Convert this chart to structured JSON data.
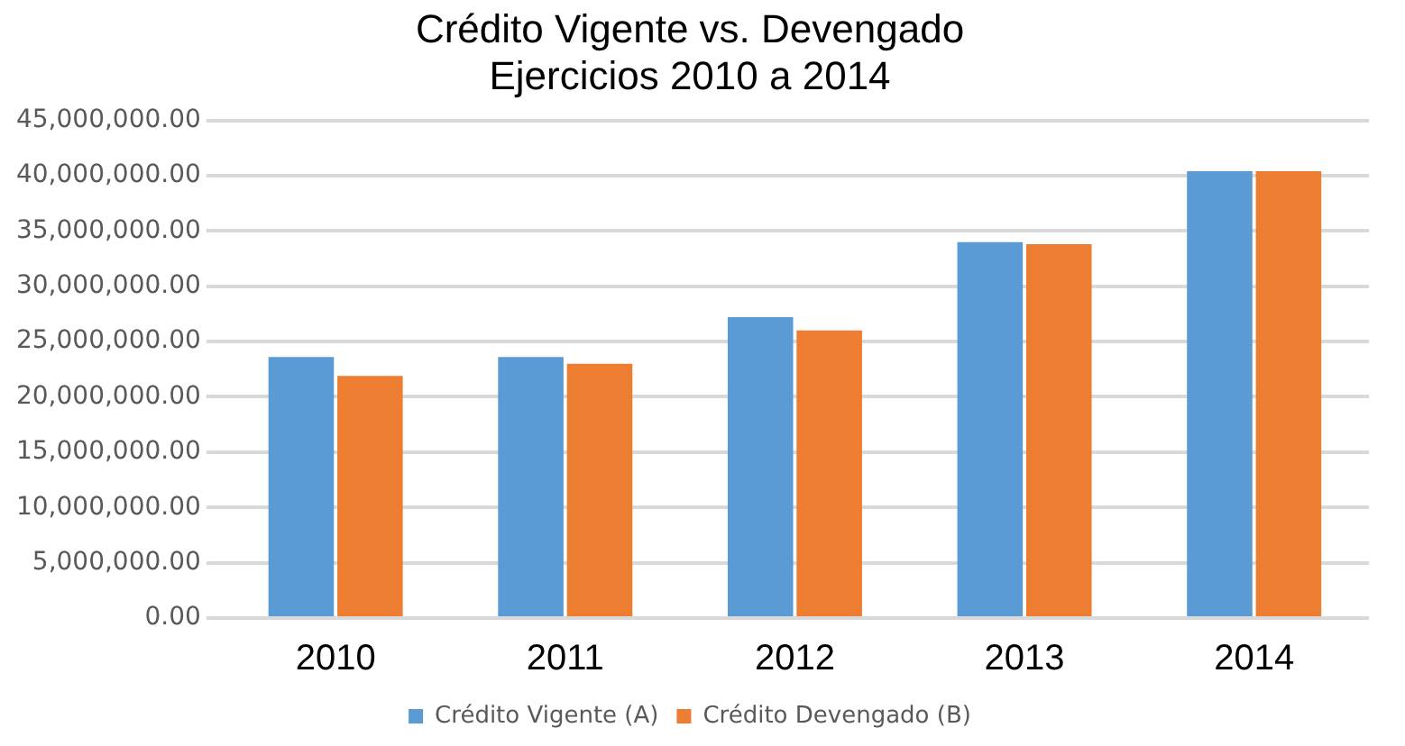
{
  "chart_data": {
    "type": "bar",
    "title": "Crédito Vigente vs. Devengado\nEjercicios 2010 a 2014",
    "categories": [
      "2010",
      "2011",
      "2012",
      "2013",
      "2014"
    ],
    "series": [
      {
        "name": "Crédito Vigente (A)",
        "color": "#5b9bd5",
        "values": [
          23600000,
          23600000,
          27200000,
          34000000,
          40400000
        ]
      },
      {
        "name": "Crédito Devengado (B)",
        "color": "#ed7d31",
        "values": [
          21900000,
          23000000,
          26000000,
          33800000,
          40400000
        ]
      }
    ],
    "ylim": [
      0,
      45000000
    ],
    "yticks": [
      {
        "value": 0,
        "label": "0.00"
      },
      {
        "value": 5000000,
        "label": "5,000,000.00"
      },
      {
        "value": 10000000,
        "label": "10,000,000.00"
      },
      {
        "value": 15000000,
        "label": "15,000,000.00"
      },
      {
        "value": 20000000,
        "label": "20,000,000.00"
      },
      {
        "value": 25000000,
        "label": "25,000,000.00"
      },
      {
        "value": 30000000,
        "label": "30,000,000.00"
      },
      {
        "value": 35000000,
        "label": "35,000,000.00"
      },
      {
        "value": 40000000,
        "label": "40,000,000.00"
      },
      {
        "value": 45000000,
        "label": "45,000,000.00"
      }
    ],
    "grid": "y",
    "legend": "bottom"
  }
}
